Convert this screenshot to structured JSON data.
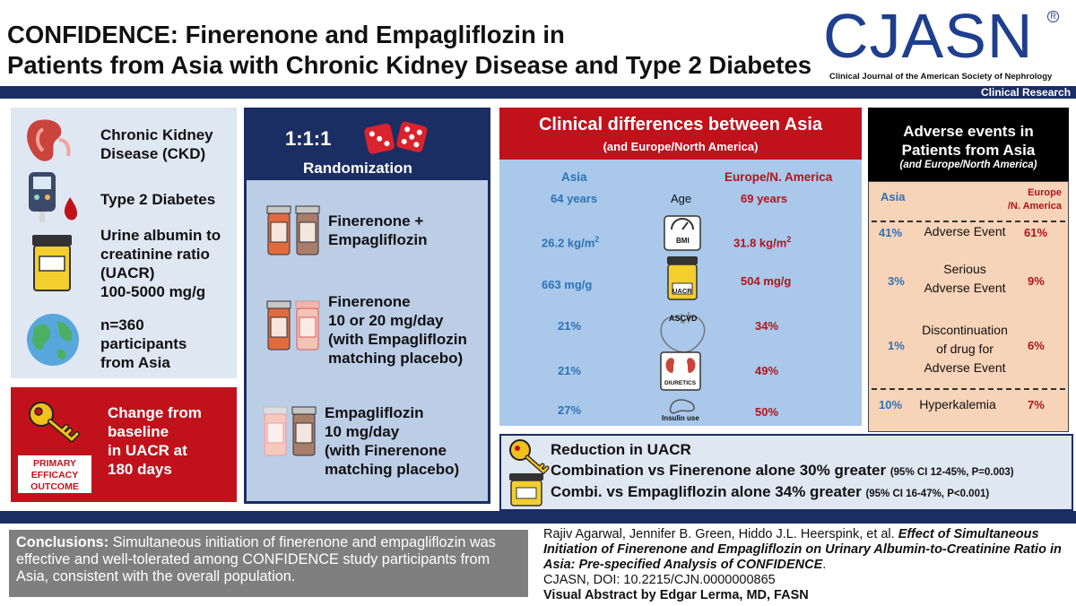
{
  "header": {
    "title_line1": "CONFIDENCE: Finerenone and Empagliflozin in",
    "title_line2": "Patients from Asia with Chronic Kidney Disease and Type 2 Diabetes",
    "logo": "CJASN",
    "logo_subtitle": "Clinical Journal of the American Society of Nephrology",
    "section": "Clinical Research"
  },
  "population": {
    "ckd": "Chronic Kidney Disease (CKD)",
    "t2d": "Type 2 Diabetes",
    "uacr": "Urine albumin to creatinine ratio (UACR) 100-5000 mg/g",
    "uacr_l1": "Urine albumin to",
    "uacr_l2": "creatinine ratio",
    "uacr_l3": "(UACR)",
    "uacr_l4": "100-5000 mg/g",
    "n_l1": "n=360",
    "n_l2": "participants",
    "n_l3": "from Asia",
    "ckd_l1": "Chronic Kidney",
    "ckd_l2": "Disease (CKD)",
    "primary_label_l1": "PRIMARY",
    "primary_label_l2": "EFFICACY",
    "primary_label_l3": "OUTCOME",
    "outcome_l1": "Change from",
    "outcome_l2": "baseline",
    "outcome_l3": "in UACR at",
    "outcome_l4": "180 days"
  },
  "randomization": {
    "ratio": "1:1:1",
    "label": "Randomization",
    "arm1_l1": "Finerenone +",
    "arm1_l2": "Empagliflozin",
    "arm2_l1": "Finerenone",
    "arm2_l2": "10 or 20 mg/day",
    "arm2_l3": "(with Empagliflozin",
    "arm2_l4": "matching placebo)",
    "arm3_l1": "Empagliflozin",
    "arm3_l2": "10 mg/day",
    "arm3_l3": "(with Finerenone",
    "arm3_l4": "matching placebo)"
  },
  "clinical": {
    "title": "Clinical differences between Asia",
    "subtitle": "(and Europe/North America)",
    "col_asia": "Asia",
    "col_eu": "Europe/N. America",
    "age_label": "Age",
    "bmi_icon_label": "BMI",
    "uacr_icon_label": "UACR",
    "ascvd_icon_label": "ASCVD",
    "diuretics_icon_label": "DIURETICS",
    "insulin_icon_label": "Insulin use",
    "rows": [
      {
        "asia": "64 years",
        "eu": "69 years"
      },
      {
        "asia": "26.2 kg/m",
        "eu": "31.8 kg/m"
      },
      {
        "asia": "663 mg/g",
        "eu": "504 mg/g"
      },
      {
        "asia": "21%",
        "eu": "34%"
      },
      {
        "asia": "21%",
        "eu": "49%"
      },
      {
        "asia": "27%",
        "eu": "50%"
      }
    ],
    "sup": "2"
  },
  "adverse": {
    "title_l1": "Adverse events in",
    "title_l2": "Patients from Asia",
    "subtitle": "(and Europe/North America)",
    "col_asia": "Asia",
    "col_eu_l1": "Europe",
    "col_eu_l2": "/N. America",
    "rows": [
      {
        "asia": "41%",
        "label_l1": "Adverse Event",
        "label_l2": "",
        "label_l3": "",
        "eu": "61%"
      },
      {
        "asia": "3%",
        "label_l1": "Serious",
        "label_l2": "Adverse Event",
        "label_l3": "",
        "eu": "9%"
      },
      {
        "asia": "1%",
        "label_l1": "Discontinuation",
        "label_l2": "of drug for",
        "label_l3": "Adverse Event",
        "eu": "6%"
      },
      {
        "asia": "10%",
        "label_l1": "Hyperkalemia",
        "label_l2": "",
        "label_l3": "",
        "eu": "7%"
      }
    ]
  },
  "reduction": {
    "title": "Reduction in UACR",
    "line1": "Combination vs Finerenone alone 30% greater",
    "line1_ci": "(95% CI 12-45%, P=0.003)",
    "line2": "Combi. vs Empagliflozin alone 34% greater",
    "line2_ci": "(95% CI 16-47%, P<0.001)"
  },
  "footer": {
    "conclusions_label": "Conclusions:",
    "conclusions_text": "Simultaneous initiation of finerenone and empagliflozin was effective and well-tolerated among CONFIDENCE study participants from Asia, consistent with the overall population.",
    "authors": "Rajiv Agarwal, Jennifer B. Green, Hiddo J.L. Heerspink, et al.",
    "article_title": "Effect of Simultaneous Initiation of Finerenone and Empagliflozin on Urinary Albumin-to-Creatinine Ratio in Asia: Pre-specified Analysis of CONFIDENCE",
    "journal": "CJASN, DOI: 10.2215/CJN.0000000865",
    "credit": "Visual Abstract by Edgar Lerma, MD, FASN"
  },
  "colors": {
    "navy": "#1b2e63",
    "red": "#c1121c",
    "asia_blue": "#2d73b8",
    "eu_red": "#b0151c"
  }
}
